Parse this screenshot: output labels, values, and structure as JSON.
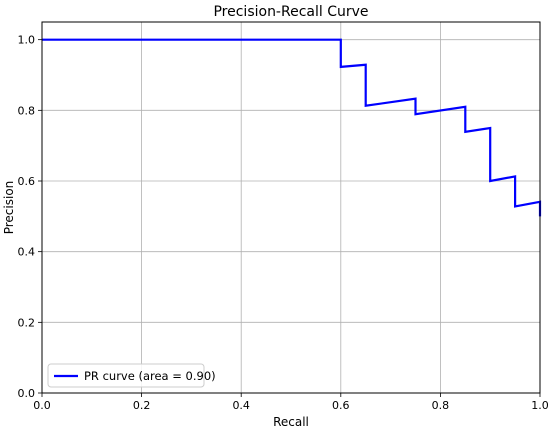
{
  "chart_data": {
    "type": "line",
    "title": "Precision-Recall Curve",
    "xlabel": "Recall",
    "ylabel": "Precision",
    "xlim": [
      0.0,
      1.0
    ],
    "ylim": [
      0.0,
      1.05
    ],
    "x_ticks": [
      "0.0",
      "0.2",
      "0.4",
      "0.6",
      "0.8",
      "1.0"
    ],
    "y_ticks": [
      "0.0",
      "0.2",
      "0.4",
      "0.6",
      "0.8",
      "1.0"
    ],
    "x_tick_values": [
      0.0,
      0.2,
      0.4,
      0.6,
      0.8,
      1.0
    ],
    "y_tick_values": [
      0.0,
      0.2,
      0.4,
      0.6,
      0.8,
      1.0
    ],
    "grid": true,
    "legend_position": "lower-left",
    "series": [
      {
        "name": "PR curve (area = 0.90)",
        "color": "#0000ff",
        "x": [
          0.0,
          0.6,
          0.6,
          0.65,
          0.65,
          0.75,
          0.75,
          0.85,
          0.85,
          0.9,
          0.9,
          0.95,
          0.95,
          1.0,
          1.0
        ],
        "y": [
          1.0,
          1.0,
          0.923,
          0.929,
          0.813,
          0.833,
          0.789,
          0.81,
          0.739,
          0.75,
          0.6,
          0.613,
          0.528,
          0.541,
          0.5
        ]
      }
    ]
  }
}
